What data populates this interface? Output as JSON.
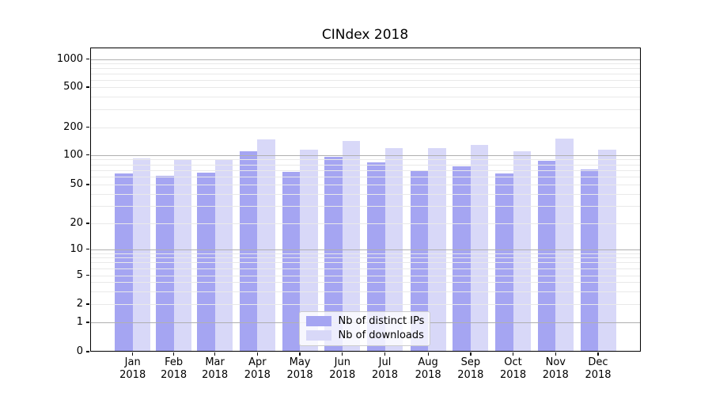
{
  "title": "CINdex 2018",
  "chart_data": {
    "type": "bar",
    "title": "CINdex 2018",
    "x_months": [
      "Jan",
      "Feb",
      "Mar",
      "Apr",
      "May",
      "Jun",
      "Jul",
      "Aug",
      "Sep",
      "Oct",
      "Nov",
      "Dec"
    ],
    "x_year": "2018",
    "categories": [
      "Jan 2018",
      "Feb 2018",
      "Mar 2018",
      "Apr 2018",
      "May 2018",
      "Jun 2018",
      "Jul 2018",
      "Aug 2018",
      "Sep 2018",
      "Oct 2018",
      "Nov 2018",
      "Dec 2018"
    ],
    "series": [
      {
        "name": "Nb of distinct IPs",
        "color": "#a5a5f2",
        "values": [
          65,
          61,
          66,
          110,
          67,
          96,
          84,
          68,
          77,
          65,
          87,
          71
        ]
      },
      {
        "name": "Nb of downloads",
        "color": "#d8d8f8",
        "values": [
          93,
          91,
          90,
          148,
          113,
          141,
          118,
          118,
          128,
          110,
          151,
          114
        ]
      }
    ],
    "y_ticks": [
      0,
      1,
      2,
      5,
      10,
      20,
      50,
      100,
      200,
      500,
      1000
    ],
    "y_scale": "symlog",
    "ylim": [
      0,
      1300
    ],
    "xlabel": "",
    "ylabel": "",
    "grid": true,
    "legend_position": "lower center",
    "colors": {
      "bar_distinct_ips": "#a5a5f2",
      "bar_downloads": "#d8d8f8",
      "major_grid": "#b0b0b0",
      "minor_grid": "#e9e9e9",
      "axis": "#000000",
      "background": "#ffffff"
    }
  }
}
